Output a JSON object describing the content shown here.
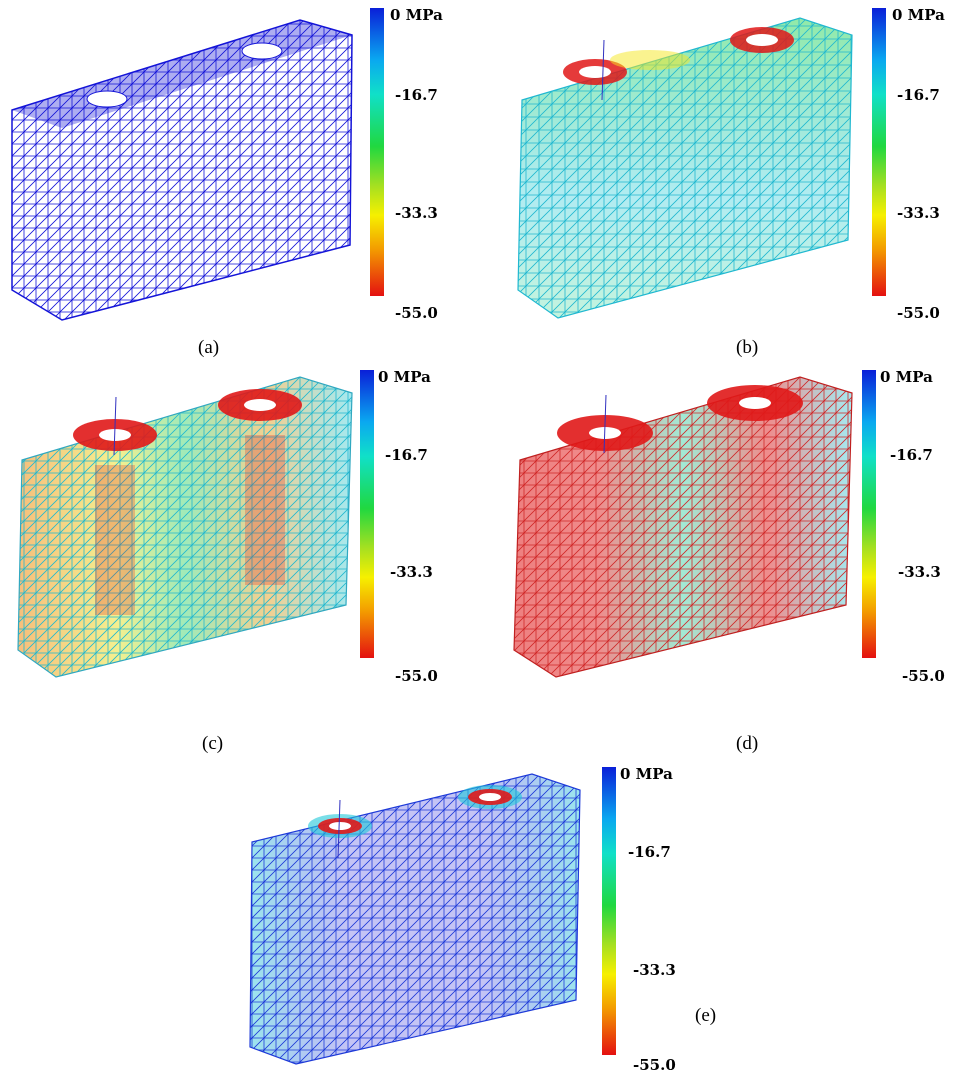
{
  "colorbar": {
    "ticks": [
      "0 MPa",
      "-16.7",
      "-33.3",
      "-55.0"
    ]
  },
  "panels": [
    {
      "label": "(a)",
      "scheme": "blue"
    },
    {
      "label": "(b)",
      "scheme": "cyan-green"
    },
    {
      "label": "(c)",
      "scheme": "mixed"
    },
    {
      "label": "(d)",
      "scheme": "red-sides"
    },
    {
      "label": "(e)",
      "scheme": "blue-cyan"
    }
  ],
  "colors": {
    "blue": "#1414d8",
    "cyan": "#20c8d8",
    "green": "#30d060",
    "yellow": "#e8e020",
    "orange": "#f08a10",
    "red": "#e01818"
  }
}
